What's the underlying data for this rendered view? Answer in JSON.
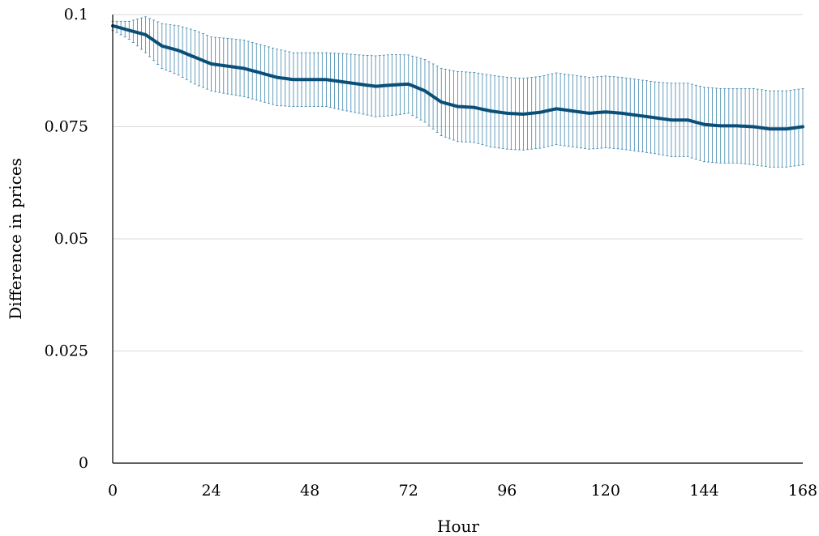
{
  "chart_data": {
    "type": "line",
    "title": "",
    "xlabel": "Hour",
    "ylabel": "Difference in prices",
    "xlim": [
      0,
      168
    ],
    "ylim": [
      0,
      0.1
    ],
    "xticks": [
      0,
      24,
      48,
      72,
      96,
      120,
      144,
      168
    ],
    "yticks": [
      0,
      0.025,
      0.05,
      0.075,
      0.1
    ],
    "xtick_labels": [
      "0",
      "24",
      "48",
      "72",
      "96",
      "120",
      "144",
      "168"
    ],
    "ytick_labels": [
      "0",
      "0.025",
      "0.05",
      "0.075",
      "0.1"
    ],
    "grid": "horizontal",
    "legend": "none",
    "colors": {
      "line": "#0b4f79",
      "error_bars": "#3e86ad",
      "grid": "#d9d9d9",
      "axis": "#000000"
    },
    "series": [
      {
        "x": [
          0,
          4,
          8,
          12,
          16,
          20,
          24,
          28,
          32,
          36,
          40,
          44,
          48,
          52,
          56,
          60,
          64,
          68,
          72,
          76,
          80,
          84,
          88,
          92,
          96,
          100,
          104,
          108,
          112,
          116,
          120,
          124,
          128,
          132,
          136,
          140,
          144,
          148,
          152,
          156,
          160,
          164,
          168
        ],
        "y": [
          0.0975,
          0.0965,
          0.0955,
          0.093,
          0.092,
          0.0905,
          0.089,
          0.0885,
          0.088,
          0.087,
          0.086,
          0.0855,
          0.0855,
          0.0855,
          0.085,
          0.0845,
          0.084,
          0.0843,
          0.0845,
          0.083,
          0.0805,
          0.0795,
          0.0793,
          0.0785,
          0.078,
          0.0778,
          0.0782,
          0.079,
          0.0785,
          0.078,
          0.0783,
          0.078,
          0.0775,
          0.077,
          0.0765,
          0.0765,
          0.0755,
          0.0752,
          0.0752,
          0.075,
          0.0745,
          0.0745,
          0.075
        ],
        "error": [
          0.001,
          0.002,
          0.004,
          0.005,
          0.0055,
          0.006,
          0.006,
          0.0062,
          0.0063,
          0.0063,
          0.0063,
          0.006,
          0.006,
          0.006,
          0.0063,
          0.0065,
          0.0068,
          0.0068,
          0.0065,
          0.007,
          0.0075,
          0.0078,
          0.0078,
          0.008,
          0.008,
          0.008,
          0.008,
          0.008,
          0.008,
          0.008,
          0.008,
          0.008,
          0.008,
          0.008,
          0.0082,
          0.0082,
          0.0083,
          0.0083,
          0.0083,
          0.0085,
          0.0085,
          0.0085,
          0.0085
        ]
      }
    ]
  }
}
